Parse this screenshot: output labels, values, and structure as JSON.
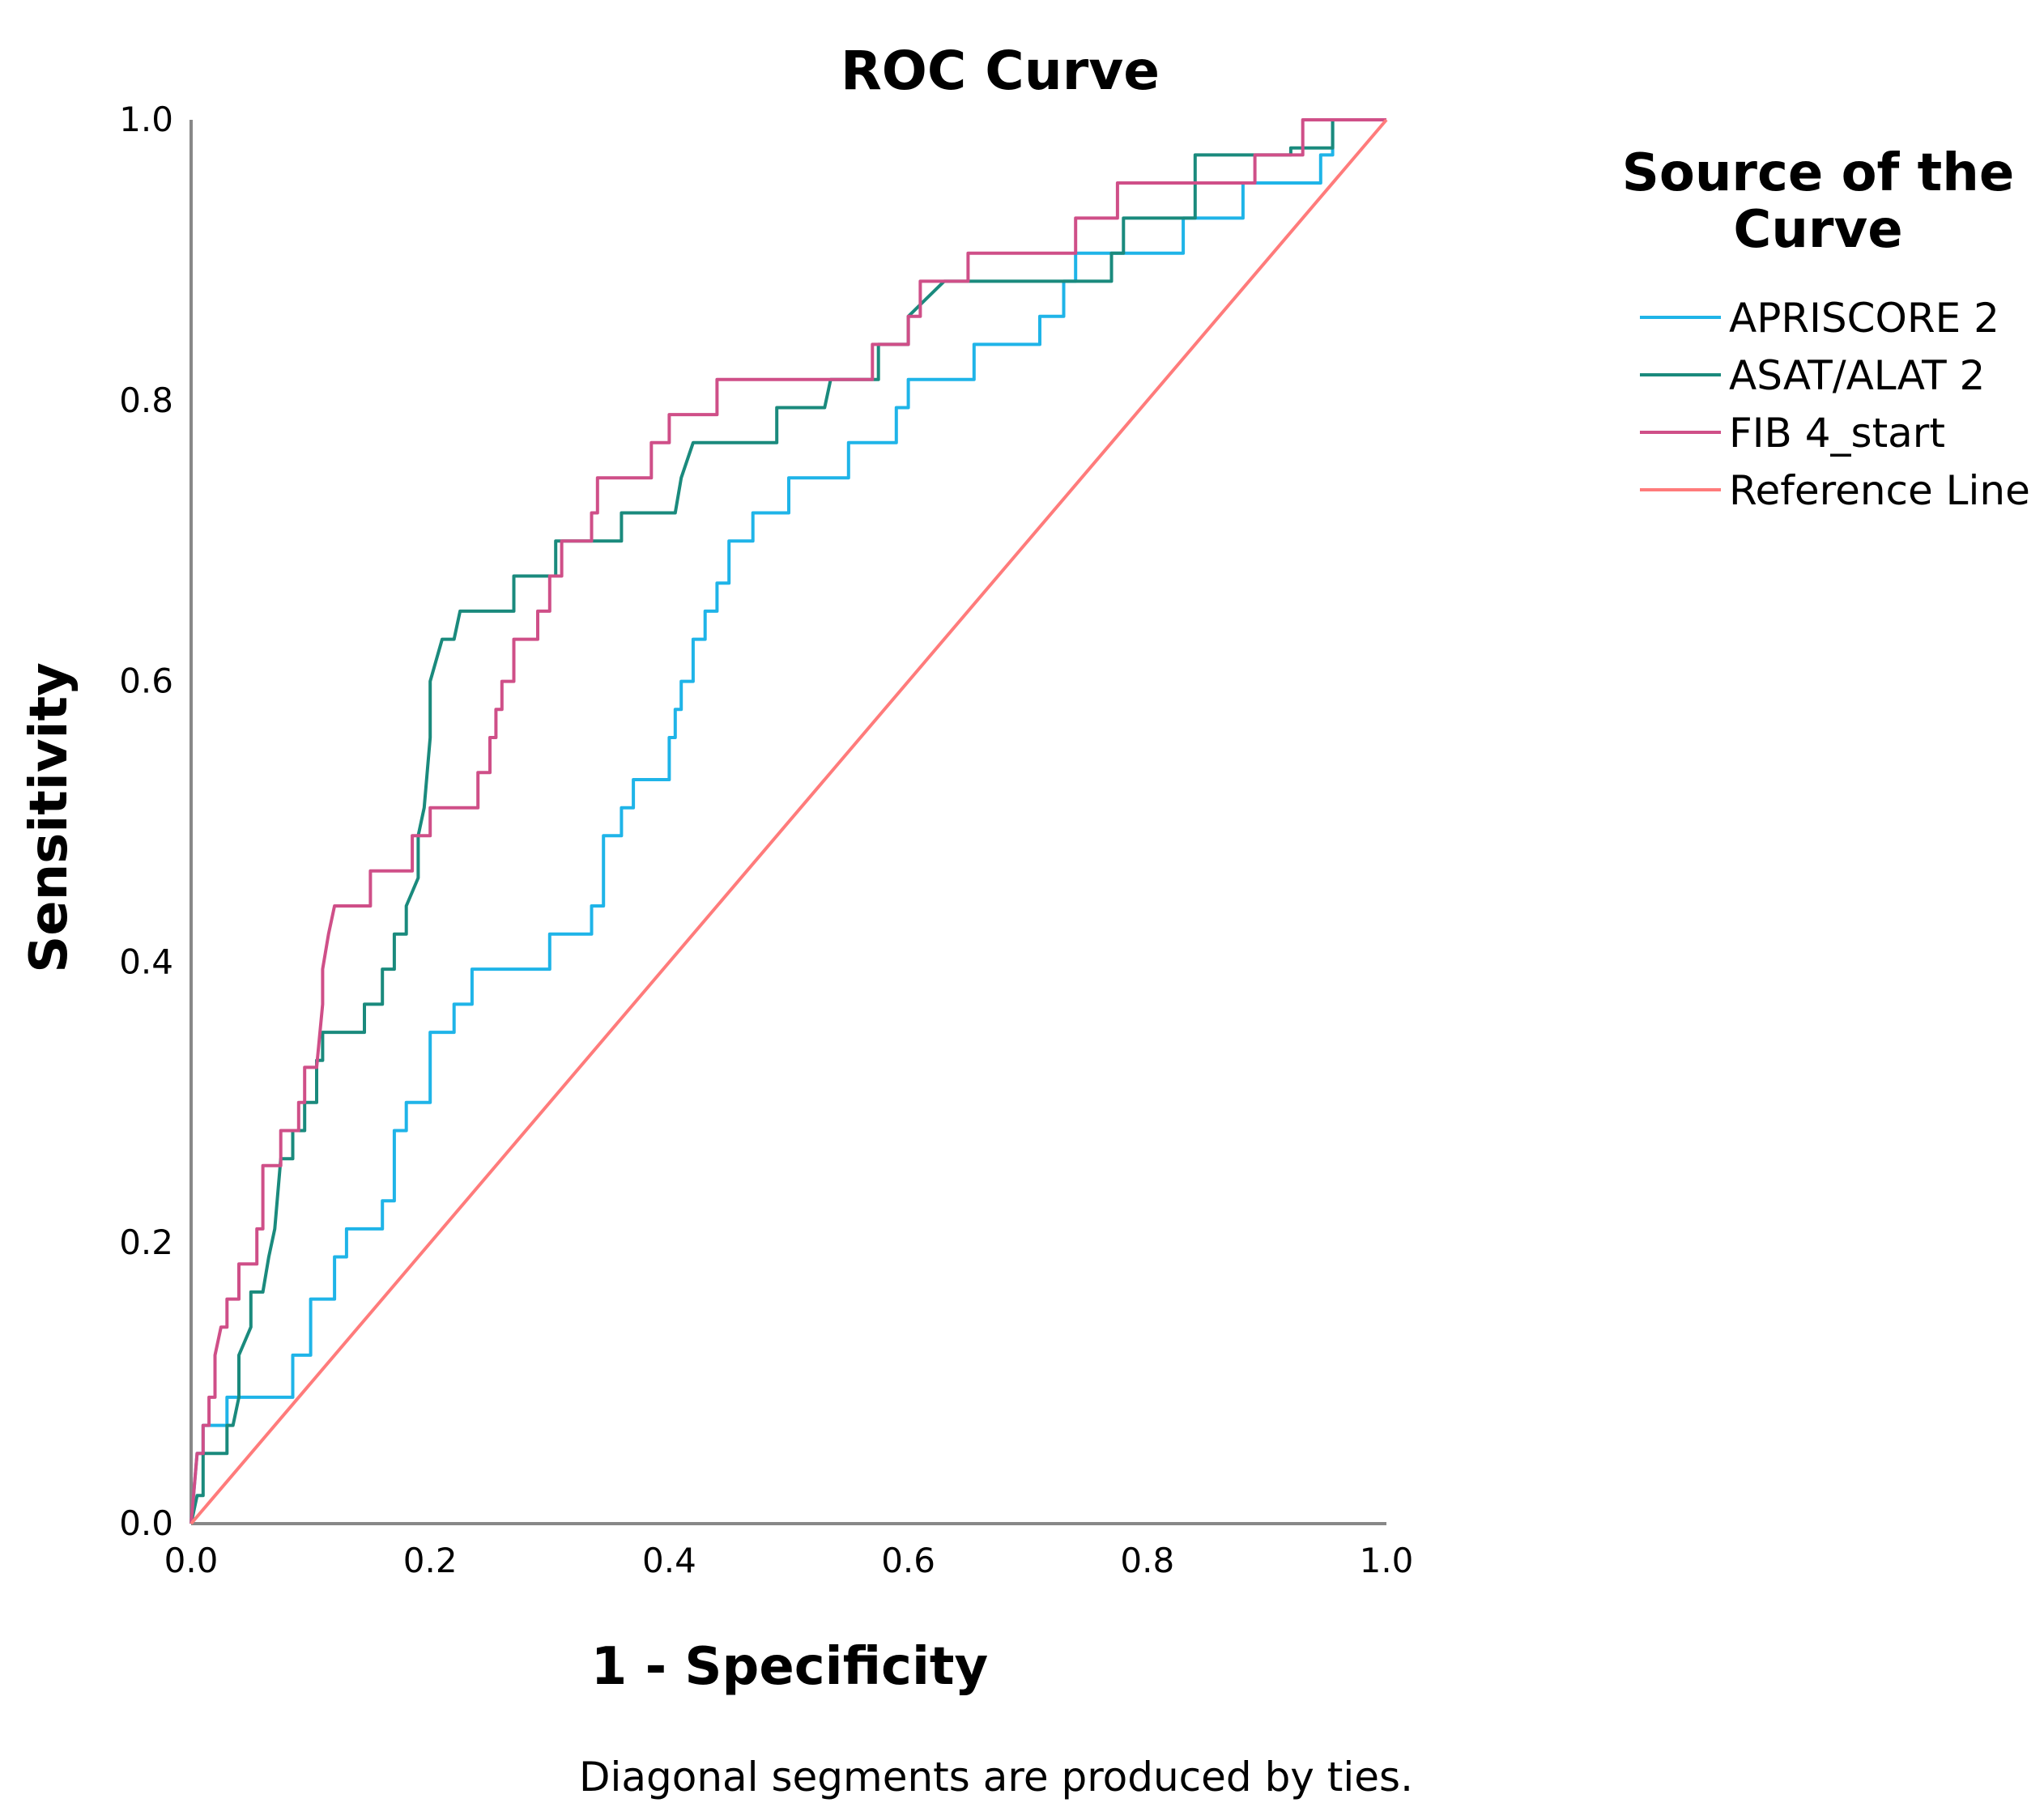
{
  "chart_data": {
    "type": "line",
    "title": "ROC Curve",
    "xlabel": "1 - Specificity",
    "ylabel": "Sensitivity",
    "xlim": [
      0,
      1
    ],
    "ylim": [
      0,
      1
    ],
    "x_ticks": [
      "0.0",
      "0.2",
      "0.4",
      "0.6",
      "0.8",
      "1.0"
    ],
    "y_ticks": [
      "0.0",
      "0.2",
      "0.4",
      "0.6",
      "0.8",
      "1.0"
    ],
    "grid": false,
    "legend": {
      "title_line1": "Source of the",
      "title_line2": "Curve",
      "position": "right"
    },
    "footnote": "Diagonal segments are produced by ties.",
    "series": [
      {
        "name": "APRISCORE 2",
        "color": "#1fb4e8",
        "points": [
          [
            0,
            0
          ],
          [
            0.005,
            0.05
          ],
          [
            0.01,
            0.05
          ],
          [
            0.01,
            0.07
          ],
          [
            0.03,
            0.07
          ],
          [
            0.03,
            0.09
          ],
          [
            0.085,
            0.09
          ],
          [
            0.085,
            0.12
          ],
          [
            0.1,
            0.12
          ],
          [
            0.1,
            0.16
          ],
          [
            0.12,
            0.16
          ],
          [
            0.12,
            0.19
          ],
          [
            0.13,
            0.19
          ],
          [
            0.13,
            0.21
          ],
          [
            0.16,
            0.21
          ],
          [
            0.16,
            0.23
          ],
          [
            0.17,
            0.23
          ],
          [
            0.17,
            0.28
          ],
          [
            0.18,
            0.28
          ],
          [
            0.18,
            0.3
          ],
          [
            0.2,
            0.3
          ],
          [
            0.2,
            0.35
          ],
          [
            0.22,
            0.35
          ],
          [
            0.22,
            0.37
          ],
          [
            0.235,
            0.37
          ],
          [
            0.235,
            0.395
          ],
          [
            0.3,
            0.395
          ],
          [
            0.3,
            0.42
          ],
          [
            0.335,
            0.42
          ],
          [
            0.335,
            0.44
          ],
          [
            0.345,
            0.44
          ],
          [
            0.345,
            0.49
          ],
          [
            0.36,
            0.49
          ],
          [
            0.36,
            0.51
          ],
          [
            0.37,
            0.51
          ],
          [
            0.37,
            0.53
          ],
          [
            0.4,
            0.53
          ],
          [
            0.4,
            0.56
          ],
          [
            0.405,
            0.56
          ],
          [
            0.405,
            0.58
          ],
          [
            0.41,
            0.58
          ],
          [
            0.41,
            0.6
          ],
          [
            0.42,
            0.6
          ],
          [
            0.42,
            0.63
          ],
          [
            0.43,
            0.63
          ],
          [
            0.43,
            0.65
          ],
          [
            0.44,
            0.65
          ],
          [
            0.44,
            0.67
          ],
          [
            0.45,
            0.67
          ],
          [
            0.45,
            0.7
          ],
          [
            0.47,
            0.7
          ],
          [
            0.47,
            0.72
          ],
          [
            0.5,
            0.72
          ],
          [
            0.5,
            0.745
          ],
          [
            0.55,
            0.745
          ],
          [
            0.55,
            0.77
          ],
          [
            0.59,
            0.77
          ],
          [
            0.59,
            0.795
          ],
          [
            0.6,
            0.795
          ],
          [
            0.6,
            0.815
          ],
          [
            0.655,
            0.815
          ],
          [
            0.655,
            0.84
          ],
          [
            0.71,
            0.84
          ],
          [
            0.71,
            0.86
          ],
          [
            0.73,
            0.86
          ],
          [
            0.73,
            0.885
          ],
          [
            0.74,
            0.885
          ],
          [
            0.74,
            0.905
          ],
          [
            0.83,
            0.905
          ],
          [
            0.83,
            0.93
          ],
          [
            0.88,
            0.93
          ],
          [
            0.88,
            0.955
          ],
          [
            0.945,
            0.955
          ],
          [
            0.945,
            0.975
          ],
          [
            0.955,
            0.975
          ],
          [
            0.955,
            1.0
          ],
          [
            1.0,
            1.0
          ]
        ]
      },
      {
        "name": "ASAT/ALAT 2",
        "color": "#1a8a7d",
        "points": [
          [
            0,
            0
          ],
          [
            0.005,
            0.02
          ],
          [
            0.01,
            0.02
          ],
          [
            0.01,
            0.05
          ],
          [
            0.03,
            0.05
          ],
          [
            0.03,
            0.07
          ],
          [
            0.035,
            0.07
          ],
          [
            0.04,
            0.09
          ],
          [
            0.04,
            0.12
          ],
          [
            0.05,
            0.14
          ],
          [
            0.05,
            0.165
          ],
          [
            0.06,
            0.165
          ],
          [
            0.065,
            0.19
          ],
          [
            0.07,
            0.21
          ],
          [
            0.075,
            0.26
          ],
          [
            0.085,
            0.26
          ],
          [
            0.085,
            0.28
          ],
          [
            0.095,
            0.28
          ],
          [
            0.095,
            0.3
          ],
          [
            0.105,
            0.3
          ],
          [
            0.105,
            0.33
          ],
          [
            0.11,
            0.33
          ],
          [
            0.11,
            0.35
          ],
          [
            0.145,
            0.35
          ],
          [
            0.145,
            0.37
          ],
          [
            0.16,
            0.37
          ],
          [
            0.16,
            0.395
          ],
          [
            0.17,
            0.395
          ],
          [
            0.17,
            0.42
          ],
          [
            0.18,
            0.42
          ],
          [
            0.18,
            0.44
          ],
          [
            0.19,
            0.46
          ],
          [
            0.19,
            0.49
          ],
          [
            0.195,
            0.51
          ],
          [
            0.2,
            0.56
          ],
          [
            0.2,
            0.6
          ],
          [
            0.21,
            0.63
          ],
          [
            0.22,
            0.63
          ],
          [
            0.225,
            0.65
          ],
          [
            0.27,
            0.65
          ],
          [
            0.27,
            0.675
          ],
          [
            0.305,
            0.675
          ],
          [
            0.305,
            0.7
          ],
          [
            0.36,
            0.7
          ],
          [
            0.36,
            0.72
          ],
          [
            0.405,
            0.72
          ],
          [
            0.41,
            0.745
          ],
          [
            0.42,
            0.77
          ],
          [
            0.49,
            0.77
          ],
          [
            0.49,
            0.795
          ],
          [
            0.53,
            0.795
          ],
          [
            0.535,
            0.815
          ],
          [
            0.575,
            0.815
          ],
          [
            0.575,
            0.84
          ],
          [
            0.6,
            0.84
          ],
          [
            0.6,
            0.86
          ],
          [
            0.63,
            0.885
          ],
          [
            0.77,
            0.885
          ],
          [
            0.77,
            0.905
          ],
          [
            0.78,
            0.905
          ],
          [
            0.78,
            0.93
          ],
          [
            0.84,
            0.93
          ],
          [
            0.84,
            0.975
          ],
          [
            0.92,
            0.975
          ],
          [
            0.92,
            0.98
          ],
          [
            0.955,
            0.98
          ],
          [
            0.955,
            1.0
          ],
          [
            1.0,
            1.0
          ]
        ]
      },
      {
        "name": "FIB 4_start",
        "color": "#cf4f88",
        "points": [
          [
            0,
            0
          ],
          [
            0.005,
            0.05
          ],
          [
            0.01,
            0.05
          ],
          [
            0.01,
            0.07
          ],
          [
            0.015,
            0.07
          ],
          [
            0.015,
            0.09
          ],
          [
            0.02,
            0.09
          ],
          [
            0.02,
            0.12
          ],
          [
            0.025,
            0.14
          ],
          [
            0.03,
            0.14
          ],
          [
            0.03,
            0.16
          ],
          [
            0.04,
            0.16
          ],
          [
            0.04,
            0.185
          ],
          [
            0.055,
            0.185
          ],
          [
            0.055,
            0.21
          ],
          [
            0.06,
            0.21
          ],
          [
            0.06,
            0.255
          ],
          [
            0.075,
            0.255
          ],
          [
            0.075,
            0.28
          ],
          [
            0.09,
            0.28
          ],
          [
            0.09,
            0.3
          ],
          [
            0.095,
            0.3
          ],
          [
            0.095,
            0.325
          ],
          [
            0.105,
            0.325
          ],
          [
            0.11,
            0.37
          ],
          [
            0.11,
            0.395
          ],
          [
            0.115,
            0.42
          ],
          [
            0.12,
            0.44
          ],
          [
            0.15,
            0.44
          ],
          [
            0.15,
            0.465
          ],
          [
            0.185,
            0.465
          ],
          [
            0.185,
            0.49
          ],
          [
            0.2,
            0.49
          ],
          [
            0.2,
            0.51
          ],
          [
            0.24,
            0.51
          ],
          [
            0.24,
            0.535
          ],
          [
            0.25,
            0.535
          ],
          [
            0.25,
            0.56
          ],
          [
            0.255,
            0.56
          ],
          [
            0.255,
            0.58
          ],
          [
            0.26,
            0.58
          ],
          [
            0.26,
            0.6
          ],
          [
            0.27,
            0.6
          ],
          [
            0.27,
            0.63
          ],
          [
            0.29,
            0.63
          ],
          [
            0.29,
            0.65
          ],
          [
            0.3,
            0.65
          ],
          [
            0.3,
            0.675
          ],
          [
            0.31,
            0.675
          ],
          [
            0.31,
            0.7
          ],
          [
            0.335,
            0.7
          ],
          [
            0.335,
            0.72
          ],
          [
            0.34,
            0.72
          ],
          [
            0.34,
            0.745
          ],
          [
            0.385,
            0.745
          ],
          [
            0.385,
            0.77
          ],
          [
            0.4,
            0.77
          ],
          [
            0.4,
            0.79
          ],
          [
            0.44,
            0.79
          ],
          [
            0.44,
            0.815
          ],
          [
            0.57,
            0.815
          ],
          [
            0.57,
            0.84
          ],
          [
            0.6,
            0.84
          ],
          [
            0.6,
            0.86
          ],
          [
            0.61,
            0.86
          ],
          [
            0.61,
            0.885
          ],
          [
            0.65,
            0.885
          ],
          [
            0.65,
            0.905
          ],
          [
            0.74,
            0.905
          ],
          [
            0.74,
            0.93
          ],
          [
            0.775,
            0.93
          ],
          [
            0.775,
            0.955
          ],
          [
            0.89,
            0.955
          ],
          [
            0.89,
            0.975
          ],
          [
            0.93,
            0.975
          ],
          [
            0.93,
            1.0
          ],
          [
            1.0,
            1.0
          ]
        ]
      },
      {
        "name": "Reference Line",
        "color": "#ff7b7b",
        "points": [
          [
            0,
            0
          ],
          [
            1,
            1
          ]
        ]
      }
    ]
  }
}
